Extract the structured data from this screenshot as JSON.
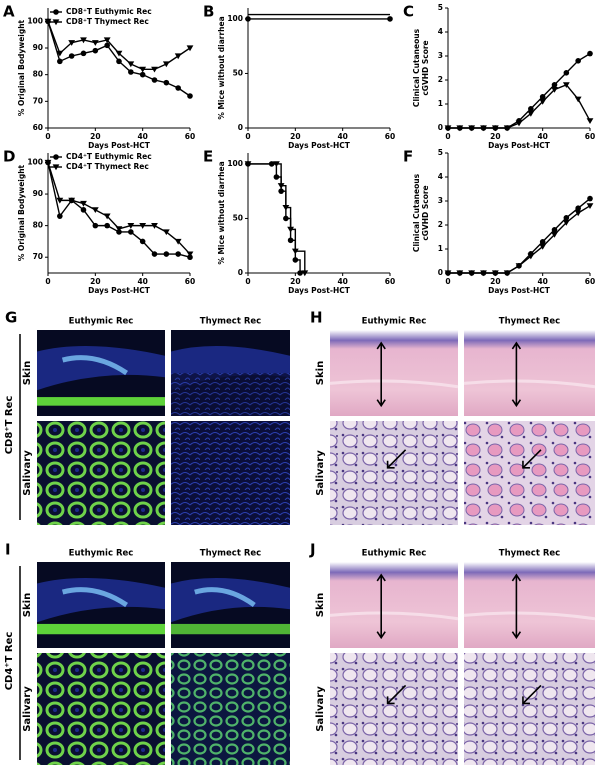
{
  "chart_data": [
    {
      "type": "line",
      "panel": "A",
      "xlabel": "Days Post-HCT",
      "ylabel": "% Original Bodyweight",
      "xlim": [
        0,
        60
      ],
      "xticks": [
        0,
        20,
        40,
        60
      ],
      "ylim": [
        60,
        105
      ],
      "yticks": [
        60,
        70,
        80,
        90,
        100
      ],
      "legend": "upper left",
      "x": [
        0,
        5,
        10,
        15,
        20,
        25,
        30,
        35,
        40,
        45,
        50,
        55,
        60
      ],
      "series": [
        {
          "name": "CD8⁺T Euthymic Rec",
          "color": "#000000",
          "marker": "circle",
          "values": [
            100,
            85,
            87,
            88,
            89,
            91,
            85,
            81,
            80,
            78,
            77,
            75,
            72
          ]
        },
        {
          "name": "CD8⁺T Thymect Rec",
          "color": "#000000",
          "marker": "triangle-down",
          "values": [
            100,
            88,
            92,
            93,
            92,
            93,
            88,
            84,
            82,
            82,
            84,
            87,
            90
          ]
        }
      ]
    },
    {
      "type": "step",
      "panel": "B",
      "xlabel": "Days Post-HCT",
      "ylabel": "% Mice without diarrhea",
      "xlim": [
        0,
        60
      ],
      "xticks": [
        0,
        20,
        40,
        60
      ],
      "ylim": [
        0,
        110
      ],
      "yticks": [
        0,
        50,
        100
      ],
      "series": [
        {
          "color": "#000000",
          "marker": "circle",
          "x": [
            0,
            60
          ],
          "values": [
            100,
            100
          ]
        },
        {
          "color": "#000000",
          "marker": "none",
          "x": [
            0,
            60
          ],
          "values": [
            104,
            104
          ]
        }
      ]
    },
    {
      "type": "line",
      "panel": "C",
      "xlabel": "Days Post-HCT",
      "ylabel": [
        "Clinical Cutaneous",
        "cGVHD Score"
      ],
      "xlim": [
        0,
        60
      ],
      "xticks": [
        0,
        20,
        40,
        60
      ],
      "ylim": [
        0,
        5
      ],
      "yticks": [
        0,
        1,
        2,
        3,
        4,
        5
      ],
      "x": [
        0,
        5,
        10,
        15,
        20,
        25,
        30,
        35,
        40,
        45,
        50,
        55,
        60
      ],
      "series": [
        {
          "color": "#000000",
          "marker": "circle",
          "values": [
            0,
            0,
            0,
            0,
            0,
            0,
            0.3,
            0.8,
            1.3,
            1.8,
            2.3,
            2.8,
            3.1
          ]
        },
        {
          "color": "#000000",
          "marker": "triangle-down",
          "values": [
            0,
            0,
            0,
            0,
            0,
            0,
            0.2,
            0.6,
            1.1,
            1.6,
            1.8,
            1.2,
            0.3
          ]
        }
      ]
    },
    {
      "type": "line",
      "panel": "D",
      "xlabel": "Days Post-HCT",
      "ylabel": "% Original Bodyweight",
      "xlim": [
        0,
        60
      ],
      "xticks": [
        0,
        20,
        40,
        60
      ],
      "ylim": [
        65,
        103
      ],
      "yticks": [
        70,
        80,
        90,
        100
      ],
      "legend": "upper left",
      "x": [
        0,
        5,
        10,
        15,
        20,
        25,
        30,
        35,
        40,
        45,
        50,
        55,
        60
      ],
      "series": [
        {
          "name": "CD4⁺T Euthymic Rec",
          "color": "#000000",
          "marker": "circle",
          "values": [
            100,
            83,
            88,
            85,
            80,
            80,
            78,
            78,
            75,
            71,
            71,
            71,
            70
          ]
        },
        {
          "name": "CD4⁺T Thymect Rec",
          "color": "#000000",
          "marker": "triangle-down",
          "values": [
            100,
            88,
            88,
            87,
            85,
            83,
            79,
            80,
            80,
            80,
            78,
            75,
            71
          ]
        }
      ]
    },
    {
      "type": "step",
      "panel": "E",
      "xlabel": "Days Post-HCT",
      "ylabel": "% Mice without diarrhea",
      "xlim": [
        0,
        60
      ],
      "xticks": [
        0,
        20,
        40,
        60
      ],
      "ylim": [
        0,
        110
      ],
      "yticks": [
        0,
        50,
        100
      ],
      "series": [
        {
          "color": "#000000",
          "marker": "circle",
          "x": [
            0,
            10,
            12,
            14,
            16,
            18,
            20,
            22
          ],
          "values": [
            100,
            100,
            88,
            75,
            50,
            30,
            12,
            0
          ]
        },
        {
          "color": "#000000",
          "marker": "triangle-down",
          "x": [
            0,
            12,
            14,
            16,
            18,
            20,
            24
          ],
          "values": [
            100,
            100,
            80,
            60,
            40,
            20,
            0
          ]
        }
      ]
    },
    {
      "type": "line",
      "panel": "F",
      "xlabel": "Days Post-HCT",
      "ylabel": [
        "Clinical Cutaneous",
        "cGVHD Score"
      ],
      "xlim": [
        0,
        60
      ],
      "xticks": [
        0,
        20,
        40,
        60
      ],
      "ylim": [
        0,
        5
      ],
      "yticks": [
        0,
        1,
        2,
        3,
        4,
        5
      ],
      "x": [
        0,
        5,
        10,
        15,
        20,
        25,
        30,
        35,
        40,
        45,
        50,
        55,
        60
      ],
      "series": [
        {
          "color": "#000000",
          "marker": "circle",
          "values": [
            0,
            0,
            0,
            0,
            0,
            0,
            0.3,
            0.8,
            1.3,
            1.8,
            2.3,
            2.7,
            3.1
          ]
        },
        {
          "color": "#000000",
          "marker": "triangle-down",
          "values": [
            0,
            0,
            0,
            0,
            0,
            0,
            0.3,
            0.7,
            1.1,
            1.6,
            2.1,
            2.5,
            2.8
          ]
        }
      ]
    }
  ],
  "image_panels": [
    {
      "letter": "G",
      "columns": [
        "Euthymic Rec",
        "Thymect Rec"
      ],
      "rows": [
        "Skin",
        "Salivary"
      ],
      "group": "CD8⁺T Rec"
    },
    {
      "letter": "H",
      "columns": [
        "Euthymic Rec",
        "Thymect Rec"
      ],
      "rows": [
        "Skin",
        "Salivary"
      ]
    },
    {
      "letter": "I",
      "columns": [
        "Euthymic Rec",
        "Thymect Rec"
      ],
      "rows": [
        "Skin",
        "Salivary"
      ],
      "group": "CD4⁺T Rec"
    },
    {
      "letter": "J",
      "columns": [
        "Euthymic Rec",
        "Thymect Rec"
      ],
      "rows": [
        "Skin",
        "Salivary"
      ]
    }
  ]
}
